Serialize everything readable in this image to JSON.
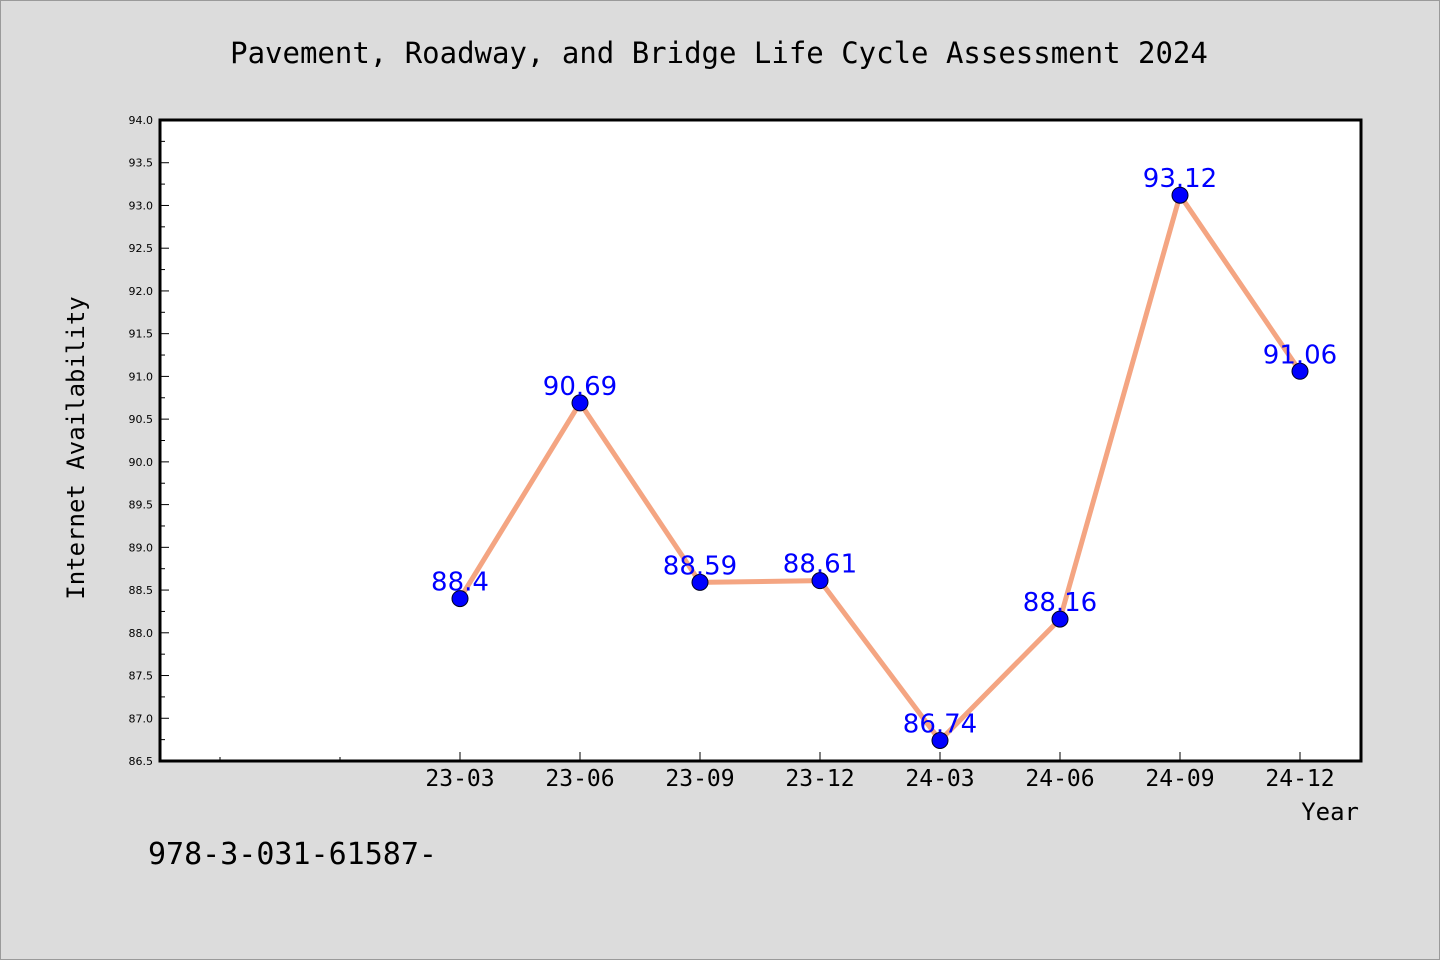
{
  "chart_data": {
    "type": "line",
    "title": "Pavement, Roadway, and Bridge Life Cycle Assessment 2024",
    "xlabel": "Year",
    "ylabel": "Internet Availability",
    "categories": [
      "23-03",
      "23-06",
      "23-09",
      "23-12",
      "24-03",
      "24-06",
      "24-09",
      "24-12"
    ],
    "series": [
      {
        "values": [
          88.4,
          90.69,
          88.59,
          88.61,
          86.74,
          88.16,
          93.12,
          91.06
        ],
        "labels": [
          "88.4",
          "90.69",
          "88.59",
          "88.61",
          "86.74",
          "88.16",
          "93.12",
          "91.06"
        ]
      }
    ],
    "ylim": [
      86.5,
      94.0
    ],
    "yticks": [
      "86.5",
      "87.0",
      "87.5",
      "88.0",
      "88.5",
      "89.0",
      "89.5",
      "90.0",
      "90.5",
      "91.0",
      "91.5",
      "92.0",
      "92.5",
      "93.0",
      "93.5",
      "94.0"
    ],
    "x_leading_empty_slots": 2,
    "grid": false,
    "line_color": "#f4a582",
    "marker_color": "#0000ff",
    "label_color": "#0000ff",
    "background_color": "#dcdcdc",
    "plot_background_color": "#ffffff"
  },
  "footnote": "978-3-031-61587-"
}
